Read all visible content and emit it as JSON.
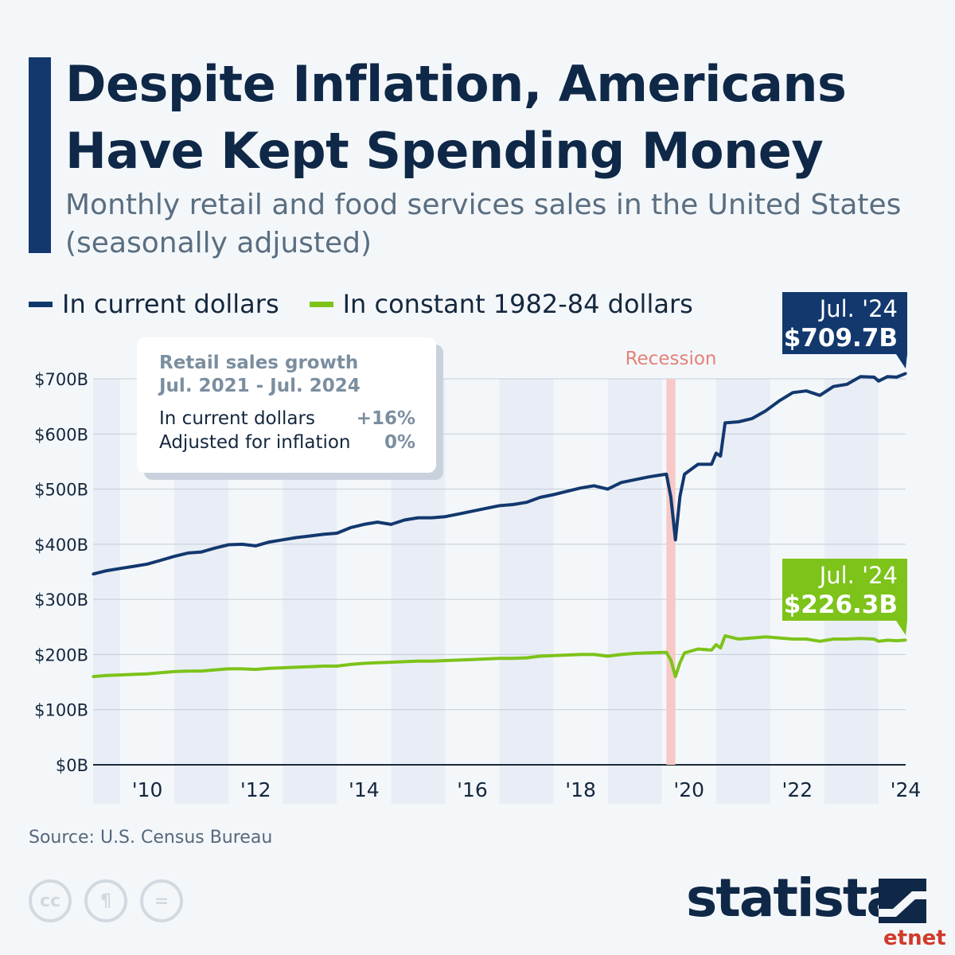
{
  "header": {
    "title_line1": "Despite Inflation, Americans",
    "title_line2": "Have Kept Spending Money",
    "subtitle_line1": "Monthly retail and food services sales in the United States",
    "subtitle_line2": "(seasonally adjusted)"
  },
  "legend": [
    {
      "label": "In current dollars",
      "color": "#12386e"
    },
    {
      "label": "In constant 1982-84 dollars",
      "color": "#7dc31a"
    }
  ],
  "infobox": {
    "title_line1": "Retail sales growth",
    "title_line2": "Jul. 2021 - Jul. 2024",
    "row1_label": "In current dollars",
    "row1_value": "+16%",
    "row2_label": "Adjusted for inflation",
    "row2_value": "0%"
  },
  "chart_data": {
    "type": "line",
    "title": "Despite Inflation, Americans Have Kept Spending Money",
    "subtitle": "Monthly retail and food services sales in the United States (seasonally adjusted)",
    "y_unit": "billions of US dollars",
    "ylim": [
      0,
      700
    ],
    "yticks": [
      0,
      100,
      200,
      300,
      400,
      500,
      600,
      700
    ],
    "ytick_labels": [
      "$0B",
      "$100B",
      "$200B",
      "$300B",
      "$400B",
      "$500B",
      "$600B",
      "$700B"
    ],
    "xlim": [
      "2009-07",
      "2024-07"
    ],
    "xtick_labels": [
      "'10",
      "'12",
      "'14",
      "'16",
      "'18",
      "'20",
      "'22",
      "'24"
    ],
    "xtick_years": [
      2010,
      2012,
      2014,
      2016,
      2018,
      2020,
      2022,
      2024
    ],
    "grid": true,
    "legend_position": "top-left",
    "shaded_year_bands": true,
    "recession": {
      "label": "Recession",
      "start": "2020-02",
      "end": "2020-04",
      "color": "#f6c9c6"
    },
    "series": [
      {
        "name": "In current dollars",
        "color": "#12386e",
        "points": [
          [
            "2009-07",
            346
          ],
          [
            "2009-10",
            352
          ],
          [
            "2010-01",
            356
          ],
          [
            "2010-04",
            360
          ],
          [
            "2010-07",
            364
          ],
          [
            "2010-10",
            371
          ],
          [
            "2011-01",
            378
          ],
          [
            "2011-04",
            384
          ],
          [
            "2011-07",
            386
          ],
          [
            "2011-10",
            393
          ],
          [
            "2012-01",
            399
          ],
          [
            "2012-04",
            400
          ],
          [
            "2012-07",
            397
          ],
          [
            "2012-10",
            404
          ],
          [
            "2013-01",
            408
          ],
          [
            "2013-04",
            412
          ],
          [
            "2013-07",
            415
          ],
          [
            "2013-10",
            418
          ],
          [
            "2014-01",
            420
          ],
          [
            "2014-04",
            430
          ],
          [
            "2014-07",
            436
          ],
          [
            "2014-10",
            440
          ],
          [
            "2015-01",
            436
          ],
          [
            "2015-04",
            444
          ],
          [
            "2015-07",
            448
          ],
          [
            "2015-10",
            448
          ],
          [
            "2016-01",
            450
          ],
          [
            "2016-04",
            455
          ],
          [
            "2016-07",
            460
          ],
          [
            "2016-10",
            465
          ],
          [
            "2017-01",
            470
          ],
          [
            "2017-04",
            472
          ],
          [
            "2017-07",
            476
          ],
          [
            "2017-10",
            485
          ],
          [
            "2018-01",
            490
          ],
          [
            "2018-04",
            496
          ],
          [
            "2018-07",
            502
          ],
          [
            "2018-10",
            506
          ],
          [
            "2019-01",
            500
          ],
          [
            "2019-04",
            512
          ],
          [
            "2019-07",
            517
          ],
          [
            "2019-10",
            522
          ],
          [
            "2020-01",
            526
          ],
          [
            "2020-02",
            527
          ],
          [
            "2020-03",
            485
          ],
          [
            "2020-04",
            408
          ],
          [
            "2020-05",
            487
          ],
          [
            "2020-06",
            527
          ],
          [
            "2020-09",
            545
          ],
          [
            "2020-12",
            545
          ],
          [
            "2021-01",
            565
          ],
          [
            "2021-02",
            560
          ],
          [
            "2021-03",
            620
          ],
          [
            "2021-06",
            622
          ],
          [
            "2021-09",
            628
          ],
          [
            "2021-12",
            642
          ],
          [
            "2022-03",
            660
          ],
          [
            "2022-06",
            675
          ],
          [
            "2022-09",
            678
          ],
          [
            "2022-12",
            670
          ],
          [
            "2023-03",
            686
          ],
          [
            "2023-06",
            690
          ],
          [
            "2023-09",
            704
          ],
          [
            "2023-12",
            703
          ],
          [
            "2024-01",
            696
          ],
          [
            "2024-03",
            704
          ],
          [
            "2024-05",
            703
          ],
          [
            "2024-07",
            709.7
          ]
        ]
      },
      {
        "name": "In constant 1982-84 dollars",
        "color": "#7dc31a",
        "points": [
          [
            "2009-07",
            160
          ],
          [
            "2009-10",
            162
          ],
          [
            "2010-01",
            163
          ],
          [
            "2010-04",
            164
          ],
          [
            "2010-07",
            165
          ],
          [
            "2010-10",
            167
          ],
          [
            "2011-01",
            169
          ],
          [
            "2011-04",
            170
          ],
          [
            "2011-07",
            170
          ],
          [
            "2011-10",
            172
          ],
          [
            "2012-01",
            174
          ],
          [
            "2012-04",
            174
          ],
          [
            "2012-07",
            173
          ],
          [
            "2012-10",
            175
          ],
          [
            "2013-01",
            176
          ],
          [
            "2013-04",
            177
          ],
          [
            "2013-07",
            178
          ],
          [
            "2013-10",
            179
          ],
          [
            "2014-01",
            179
          ],
          [
            "2014-04",
            182
          ],
          [
            "2014-07",
            184
          ],
          [
            "2014-10",
            185
          ],
          [
            "2015-01",
            186
          ],
          [
            "2015-04",
            187
          ],
          [
            "2015-07",
            188
          ],
          [
            "2015-10",
            188
          ],
          [
            "2016-01",
            189
          ],
          [
            "2016-04",
            190
          ],
          [
            "2016-07",
            191
          ],
          [
            "2016-10",
            192
          ],
          [
            "2017-01",
            193
          ],
          [
            "2017-04",
            193
          ],
          [
            "2017-07",
            194
          ],
          [
            "2017-10",
            197
          ],
          [
            "2018-01",
            198
          ],
          [
            "2018-04",
            199
          ],
          [
            "2018-07",
            200
          ],
          [
            "2018-10",
            200
          ],
          [
            "2019-01",
            197
          ],
          [
            "2019-04",
            200
          ],
          [
            "2019-07",
            202
          ],
          [
            "2019-10",
            203
          ],
          [
            "2020-01",
            204
          ],
          [
            "2020-02",
            204
          ],
          [
            "2020-03",
            190
          ],
          [
            "2020-04",
            160
          ],
          [
            "2020-05",
            185
          ],
          [
            "2020-06",
            203
          ],
          [
            "2020-09",
            210
          ],
          [
            "2020-12",
            208
          ],
          [
            "2021-01",
            218
          ],
          [
            "2021-02",
            212
          ],
          [
            "2021-03",
            234
          ],
          [
            "2021-06",
            228
          ],
          [
            "2021-09",
            230
          ],
          [
            "2021-12",
            232
          ],
          [
            "2022-03",
            230
          ],
          [
            "2022-06",
            228
          ],
          [
            "2022-09",
            228
          ],
          [
            "2022-12",
            224
          ],
          [
            "2023-03",
            228
          ],
          [
            "2023-06",
            228
          ],
          [
            "2023-09",
            229
          ],
          [
            "2023-12",
            228
          ],
          [
            "2024-01",
            224
          ],
          [
            "2024-03",
            226
          ],
          [
            "2024-05",
            225
          ],
          [
            "2024-07",
            226.3
          ]
        ]
      }
    ],
    "annotations": [
      {
        "series": "In current dollars",
        "line1": "Jul. '24",
        "line2": "$709.7B",
        "color": "#12386e"
      },
      {
        "series": "In constant 1982-84 dollars",
        "line1": "Jul. '24",
        "line2": "$226.3B",
        "color": "#7dc31a"
      }
    ]
  },
  "footer": {
    "source": "Source: U.S. Census Bureau",
    "license_icons": [
      {
        "name": "cc-icon",
        "glyph": "cc"
      },
      {
        "name": "attribution-icon",
        "glyph": "¶"
      },
      {
        "name": "no-derivatives-icon",
        "glyph": "="
      }
    ],
    "brand": "statista",
    "watermark": "etnet"
  }
}
